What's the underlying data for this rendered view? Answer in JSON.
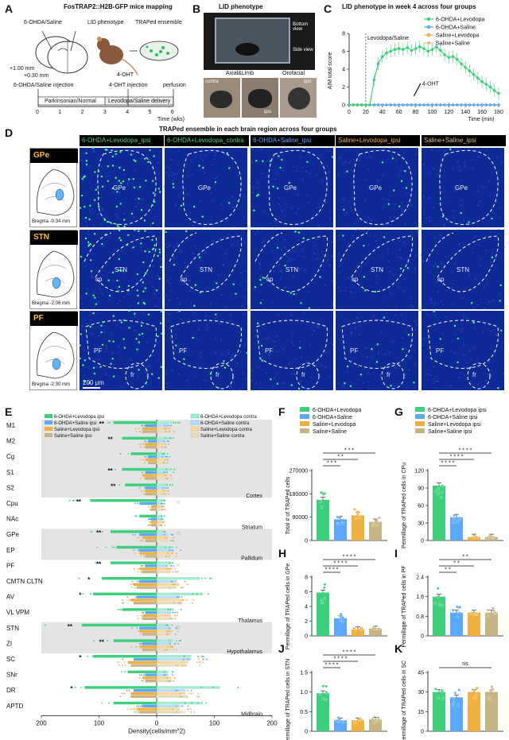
{
  "panelA": {
    "label": "A",
    "title": "FosTRAP2::H2B-GFP mice mapping",
    "injection_label": "6-OHDA/Saline",
    "lid_phenotype": "LID phenotype",
    "trap_ensemble": "TRAPed ensemble",
    "coord1": "+1.00 mm",
    "coord2": "+0.30 mm",
    "fourohtlabel": "4-OHT",
    "events": [
      "6-OHDA/Saline injection",
      "4-OHT injection",
      "perfusion"
    ],
    "phase1": "Parkinsonian/Normal",
    "phase2": "Levodopa/Saline delivery",
    "weeks": [
      "0",
      "1",
      "2",
      "3",
      "4",
      "5",
      "6"
    ],
    "axis_label": "Time (wks)"
  },
  "panelB": {
    "label": "B",
    "title": "LID phenotype",
    "bottom_view": "Bottom view",
    "side_view": "Side view",
    "axial_limb": "Axial&Limb",
    "orofacial": "Orofacial",
    "contra": "contra",
    "ipsi": "ipsi"
  },
  "panelC": {
    "label": "C",
    "title": "LID phenotype in week 4 across four groups",
    "ylabel": "AIM total score",
    "xlabel": "Time (min)",
    "annot1": "Levodopa/Saline",
    "annot2": "4-OHT"
  },
  "panelD": {
    "label": "D",
    "title": "TRAPed ensemble in each brain region across four groups",
    "columns": [
      "6-OHDA+Levodopa_ipsi",
      "6-OHDA+Levodopa_contra",
      "6-OHDA+Saline_ipsi",
      "Saline+Levodopa_ipsi",
      "Saline+Saline_ipsi"
    ],
    "column_colors": [
      "#4cd07d",
      "#4cd07d",
      "#5aa9ff",
      "#f0b040",
      "#d9c38a"
    ],
    "rows": [
      {
        "region": "GPe",
        "bregma": "Bregma -0.34 mm",
        "inner": [
          "GPe"
        ]
      },
      {
        "region": "STN",
        "bregma": "Bregma -2.06 mm",
        "inner": [
          "STN",
          "cp"
        ]
      },
      {
        "region": "PF",
        "bregma": "Bregma -2.30 mm",
        "inner": [
          "PF",
          "fr"
        ]
      }
    ],
    "scalebar": "200 μm"
  },
  "panelE": {
    "label": "E",
    "legend_left": [
      "6-OHDA+Levodopa ipsi",
      "6-OHDA+Saline ipsi",
      "Saline+Levodopa ipsi",
      "Saline+Saline ipsi"
    ],
    "legend_right": [
      "6-OHDA+Levodopa contra",
      "6-OHDA+Saline contra",
      "Saline+Levodopa contra",
      "Saline+Saline contra"
    ],
    "regions": [
      "M1",
      "M2",
      "Cg",
      "S1",
      "S2",
      "Cpu",
      "NAc",
      "GPe",
      "EP",
      "PF",
      "CMTN CLTN",
      "AV",
      "VL VPM",
      "STN",
      "ZI",
      "SC",
      "SNr",
      "DR",
      "APTD"
    ],
    "groups": [
      "Cortex",
      "Striatum",
      "Pallidum",
      "Thalamus",
      "Hypothalamus",
      "Midbrain"
    ],
    "xlabel": "Density(cells/mm^2)",
    "xticks": [
      "200",
      "100",
      "0",
      "100",
      "200"
    ],
    "sig_ipsi": [
      "**",
      "**",
      "",
      "**",
      "**",
      "**",
      "",
      "**",
      "",
      "**",
      "*",
      "*",
      "",
      "**",
      "**",
      "*",
      "",
      "*",
      ""
    ],
    "sig_contra": [
      "",
      "",
      "",
      "",
      "",
      "☆",
      "",
      "☆",
      "",
      "☆",
      "",
      "",
      "",
      "☆",
      "",
      "☆☆",
      "",
      "",
      ""
    ],
    "colors": [
      "#3ecf7c",
      "#5aa9ff",
      "#f0b040",
      "#c8b483"
    ],
    "light_colors": [
      "#a6ead0",
      "#bcdcff",
      "#f7d9a0",
      "#e7dcc0"
    ],
    "chart_data": {
      "type": "bar",
      "note": "mirrored bars; negative = ipsi, positive = contra",
      "categories": [
        "M1",
        "M2",
        "Cg",
        "S1",
        "S2",
        "Cpu",
        "NAc",
        "GPe",
        "EP",
        "PF",
        "CMTN CLTN",
        "AV",
        "VL VPM",
        "STN",
        "ZI",
        "SC",
        "SNr",
        "DR",
        "APTD"
      ],
      "series": [
        {
          "name": "6-OHDA+Levodopa ipsi",
          "values": [
            -75,
            -60,
            -45,
            -60,
            -55,
            -115,
            -30,
            -80,
            -70,
            -80,
            -95,
            -110,
            -60,
            -130,
            -75,
            -110,
            -50,
            -125,
            -75
          ]
        },
        {
          "name": "6-OHDA+Saline ipsi",
          "values": [
            -20,
            -15,
            -15,
            -20,
            -20,
            -30,
            -10,
            -30,
            -30,
            -20,
            -30,
            -35,
            -20,
            -30,
            -25,
            -40,
            -20,
            -40,
            -25
          ]
        },
        {
          "name": "Saline+Levodopa ipsi",
          "values": [
            -25,
            -20,
            -20,
            -25,
            -20,
            -10,
            -10,
            -25,
            -30,
            -30,
            -40,
            -45,
            -25,
            -30,
            -30,
            -50,
            -25,
            -45,
            -35
          ]
        },
        {
          "name": "Saline+Saline ipsi",
          "values": [
            -25,
            -20,
            -15,
            -20,
            -20,
            -10,
            -10,
            -20,
            -20,
            -25,
            -35,
            -40,
            -25,
            -25,
            -25,
            -45,
            -20,
            -45,
            -30
          ]
        },
        {
          "name": "6-OHDA+Levodopa contra",
          "values": [
            30,
            25,
            15,
            25,
            20,
            10,
            10,
            10,
            25,
            25,
            75,
            80,
            30,
            20,
            30,
            60,
            20,
            110,
            80
          ]
        },
        {
          "name": "6-OHDA+Saline contra",
          "values": [
            20,
            15,
            15,
            20,
            15,
            10,
            10,
            20,
            30,
            20,
            35,
            40,
            25,
            25,
            25,
            60,
            20,
            50,
            40
          ]
        },
        {
          "name": "Saline+Levodopa contra",
          "values": [
            20,
            15,
            15,
            20,
            15,
            10,
            10,
            20,
            30,
            25,
            40,
            45,
            25,
            25,
            30,
            55,
            25,
            50,
            40
          ]
        },
        {
          "name": "Saline+Saline contra",
          "values": [
            25,
            15,
            15,
            20,
            15,
            10,
            10,
            20,
            25,
            25,
            35,
            45,
            25,
            25,
            25,
            50,
            25,
            55,
            45
          ]
        }
      ],
      "xlabel": "Density(cells/mm^2)",
      "xlim": [
        -200,
        200
      ]
    }
  },
  "panelF": {
    "label": "F",
    "legend": [
      "6-OHDA+Levodopa",
      "6-OHDA+Saline",
      "Saline+Levodopa",
      "Saline+Saline"
    ],
    "ylabel": "Total # of TRAPed cells",
    "yticks": [
      "0",
      "90000",
      "180000",
      "270000"
    ],
    "sig": [
      "* * *",
      "* *",
      "* * *"
    ],
    "chart_data": {
      "type": "bar",
      "categories": [
        "6-OHDA+Levodopa",
        "6-OHDA+Saline",
        "Saline+Levodopa",
        "Saline+Saline"
      ],
      "values": [
        157000,
        82000,
        97000,
        72000
      ],
      "ylim": [
        0,
        270000
      ]
    }
  },
  "panelG": {
    "label": "G",
    "legend": [
      "6-OHDA+Levodopa ipsi",
      "6-OHDA+Saline ipsi",
      "Saline+Levodopa ipsi",
      "Saline+Saline ipsi"
    ],
    "ylabel": "Permillage of TRAPed cells in CPu",
    "yticks": [
      "0",
      "30",
      "60",
      "90",
      "120"
    ],
    "sig": [
      "* * * *",
      "* * * *",
      "* * * *"
    ],
    "chart_data": {
      "type": "bar",
      "categories": [
        "6-OHDA+Levodopa ipsi",
        "6-OHDA+Saline ipsi",
        "Saline+Levodopa ipsi",
        "Saline+Saline ipsi"
      ],
      "values": [
        94,
        40,
        6,
        6
      ],
      "ylim": [
        0,
        120
      ]
    }
  },
  "panelH": {
    "label": "H",
    "ylabel": "Permillage of TRAPed cells in GPe",
    "yticks": [
      "0",
      "2",
      "4",
      "6",
      "8"
    ],
    "sig": [
      "* * * *",
      "* * * *",
      "* * * *"
    ],
    "chart_data": {
      "type": "bar",
      "values": [
        5.9,
        2.4,
        0.9,
        1.0
      ],
      "ylim": [
        0,
        8
      ]
    }
  },
  "panelI": {
    "label": "I",
    "ylabel": "Permillage of TRAPed cells in PF",
    "yticks": [
      "0",
      "0.8",
      "1.6",
      "2.4"
    ],
    "sig": [
      "* *",
      "* *",
      "* *"
    ],
    "chart_data": {
      "type": "bar",
      "values": [
        1.6,
        0.95,
        0.95,
        0.95
      ],
      "ylim": [
        0,
        2.4
      ]
    }
  },
  "panelJ": {
    "label": "J",
    "ylabel": "Permillage of TRAPed cells in STN",
    "yticks": [
      "0",
      "0.5",
      "1.0",
      "1.5"
    ],
    "sig": [
      "* * * *",
      "* * * *",
      "* * * *"
    ],
    "chart_data": {
      "type": "bar",
      "values": [
        0.97,
        0.28,
        0.28,
        0.3
      ],
      "ylim": [
        0,
        1.5
      ]
    }
  },
  "panelK": {
    "label": "K",
    "ylabel": "Permillage of TRAPed cells in SC",
    "yticks": [
      "0",
      "15",
      "30",
      "45"
    ],
    "sig": [
      "ns"
    ],
    "chart_data": {
      "type": "bar",
      "values": [
        30,
        26,
        30,
        30
      ],
      "ylim": [
        0,
        45
      ]
    }
  },
  "panelCdata": {
    "chart_data": {
      "type": "line",
      "x": [
        0,
        5,
        10,
        15,
        20,
        25,
        30,
        35,
        40,
        45,
        50,
        55,
        60,
        65,
        70,
        75,
        80,
        85,
        90,
        95,
        100,
        105,
        110,
        115,
        120,
        125,
        130,
        135,
        140,
        145,
        150,
        155,
        160,
        165,
        170,
        175,
        180
      ],
      "series": [
        {
          "name": "6-OHDA+Levodopa",
          "values": [
            0,
            0,
            0,
            0,
            0,
            0,
            2.8,
            4.6,
            5.4,
            5.8,
            6.0,
            6.2,
            6.3,
            6.2,
            6.4,
            6.1,
            6.3,
            6.5,
            6.3,
            6.0,
            6.2,
            6.5,
            6.1,
            5.6,
            5.3,
            5.4,
            5.1,
            4.6,
            4.2,
            3.8,
            3.4,
            3.0,
            2.6,
            2.3,
            2.0,
            1.6,
            1.3
          ]
        },
        {
          "name": "6-OHDA+Saline",
          "values": [
            0,
            0,
            0,
            0,
            0,
            0,
            0,
            0,
            0,
            0,
            0,
            0,
            0,
            0,
            0,
            0,
            0,
            0,
            0,
            0,
            0,
            0,
            0,
            0,
            0,
            0,
            0,
            0,
            0,
            0,
            0,
            0,
            0,
            0,
            0,
            0,
            0
          ]
        },
        {
          "name": "Saline+Levodopa",
          "values": [
            0,
            0,
            0,
            0,
            0,
            0,
            0,
            0,
            0,
            0,
            0,
            0,
            0,
            0,
            0,
            0,
            0,
            0,
            0,
            0,
            0,
            0,
            0,
            0,
            0,
            0,
            0,
            0,
            0,
            0,
            0,
            0,
            0,
            0,
            0,
            0,
            0
          ]
        },
        {
          "name": "Saline+Saline",
          "values": [
            0,
            0,
            0,
            0,
            0,
            0,
            0,
            0,
            0,
            0,
            0,
            0,
            0,
            0,
            0,
            0,
            0,
            0,
            0,
            0,
            0,
            0,
            0,
            0,
            0,
            0,
            0,
            0,
            0,
            0,
            0,
            0,
            0,
            0,
            0,
            0,
            0
          ]
        }
      ],
      "legend": [
        "6-OHDA+Levodopa",
        "6-OHDA+Saline",
        "Saline+Levodopa",
        "Saline+Saline"
      ],
      "colors": [
        "#3ecf7c",
        "#5aa9ff",
        "#f0b040",
        "#d9c38a"
      ],
      "xticks": [
        "0",
        "20",
        "40",
        "60",
        "80",
        "100",
        "120",
        "140",
        "160",
        "180"
      ],
      "yticks": [
        "0",
        "2",
        "4",
        "6",
        "8"
      ],
      "xlim": [
        0,
        180
      ],
      "ylim": [
        0,
        8
      ]
    }
  }
}
